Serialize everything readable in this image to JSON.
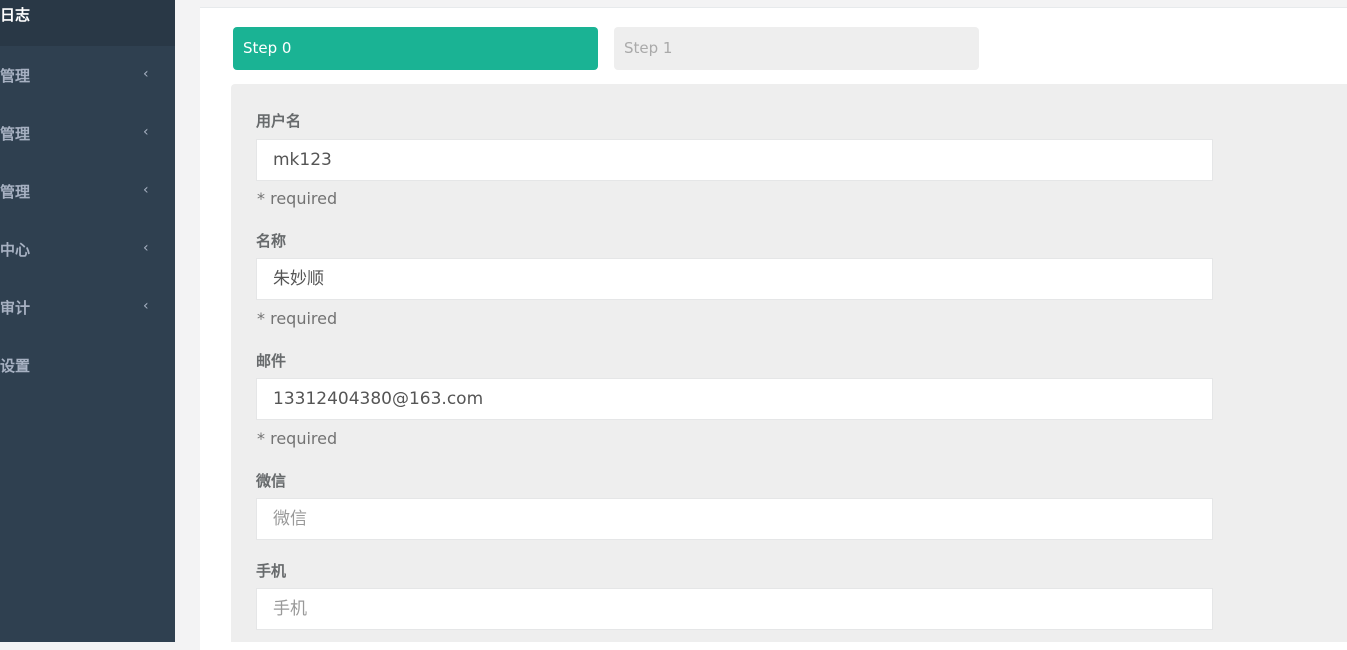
{
  "sidebar": {
    "items": [
      "日志",
      "管理",
      "管理",
      "管理",
      "中心",
      "审计",
      "设置"
    ]
  },
  "steps": [
    "Step 0",
    "Step 1"
  ],
  "form": {
    "fields": [
      {
        "label": "用户名",
        "value": "mk123",
        "help": "* required"
      },
      {
        "label": "名称",
        "value": "朱妙顺",
        "help": "* required"
      },
      {
        "label": "邮件",
        "value": "13312404380@163.com",
        "help": "* required"
      },
      {
        "label": "微信",
        "placeholder": "微信"
      },
      {
        "label": "手机",
        "placeholder": "手机"
      }
    ]
  }
}
